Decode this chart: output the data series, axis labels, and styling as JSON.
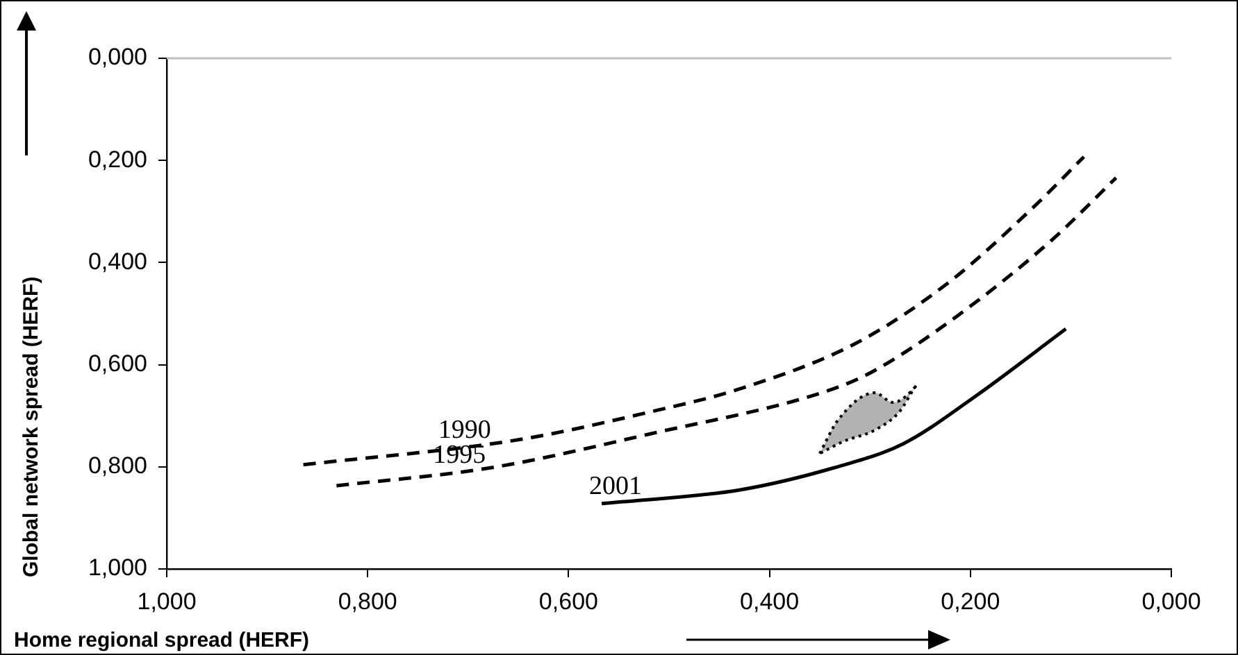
{
  "chart_data": {
    "type": "line",
    "xlabel": "Home regional spread (HERF)",
    "ylabel": "Global network spread (HERF)",
    "xlim": [
      1,
      0
    ],
    "xticks": [
      {
        "value": 1,
        "label": "1,000"
      },
      {
        "value": 0.8,
        "label": "0,800"
      },
      {
        "value": 0.6,
        "label": "0,600"
      },
      {
        "value": 0.4,
        "label": "0,400"
      },
      {
        "value": 0.2,
        "label": "0,200"
      },
      {
        "value": 0,
        "label": "0,000"
      }
    ],
    "ylim": [
      1,
      0
    ],
    "yticks": [
      {
        "value": 0,
        "label": "0,000"
      },
      {
        "value": 0.2,
        "label": "0,200"
      },
      {
        "value": 0.4,
        "label": "0,400"
      },
      {
        "value": 0.6,
        "label": "0,600"
      },
      {
        "value": 0.8,
        "label": "0,800"
      },
      {
        "value": 1,
        "label": "1,000"
      }
    ],
    "grid": false,
    "legend": false,
    "marker": "none",
    "ref_lines": [
      {
        "axis": "y",
        "value": 0,
        "color": "#c0c0c0"
      }
    ],
    "series": [
      {
        "name": "1990",
        "color": "#000000",
        "line_style": "dashed",
        "x": [
          0.864,
          0.65,
          0.52,
          0.429,
          0.313,
          0.221,
          0.138,
          0.087
        ],
        "values": [
          0.796,
          0.747,
          0.693,
          0.647,
          0.557,
          0.438,
          0.293,
          0.193
        ]
      },
      {
        "name": "1995",
        "color": "#000000",
        "line_style": "dashed",
        "x": [
          0.831,
          0.678,
          0.52,
          0.336,
          0.295,
          0.212,
          0.119,
          0.055
        ],
        "values": [
          0.837,
          0.802,
          0.736,
          0.647,
          0.611,
          0.503,
          0.356,
          0.234
        ]
      },
      {
        "name": "2001",
        "color": "#000000",
        "line_style": "solid",
        "x": [
          0.567,
          0.429,
          0.336,
          0.267,
          0.198,
          0.105
        ],
        "values": [
          0.872,
          0.845,
          0.802,
          0.755,
          0.666,
          0.53
        ]
      },
      {
        "type": "area",
        "color": "#b2b2b2",
        "line_style": "dotted",
        "x": [
          0.35,
          0.332,
          0.295,
          0.277,
          0.253,
          0.271,
          0.295,
          0.326,
          0.35
        ],
        "values": [
          0.774,
          0.709,
          0.655,
          0.674,
          0.639,
          0.693,
          0.728,
          0.75,
          0.774
        ]
      }
    ]
  }
}
